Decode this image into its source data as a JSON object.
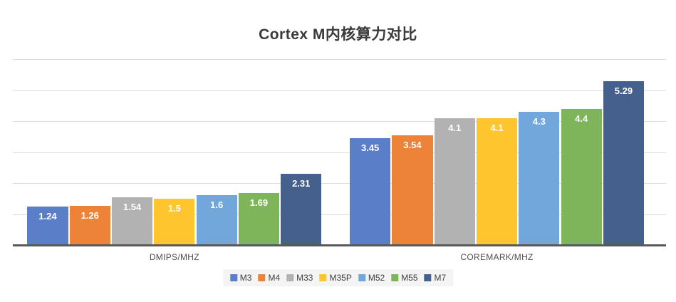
{
  "chart_data": {
    "type": "bar",
    "title": "Cortex M内核算力对比",
    "categories": [
      "DMIPS/MHZ",
      "COREMARK/MHZ"
    ],
    "series": [
      {
        "name": "M3",
        "color": "#5b7ec8",
        "values": [
          1.24,
          3.45
        ]
      },
      {
        "name": "M4",
        "color": "#ed8239",
        "values": [
          1.26,
          3.54
        ]
      },
      {
        "name": "M33",
        "color": "#b2b2b2",
        "values": [
          1.54,
          4.1
        ]
      },
      {
        "name": "M35P",
        "color": "#ffc52f",
        "values": [
          1.5,
          4.1
        ]
      },
      {
        "name": "M52",
        "color": "#71a7da",
        "values": [
          1.6,
          4.3
        ]
      },
      {
        "name": "M55",
        "color": "#7eb55b",
        "values": [
          1.69,
          4.4
        ]
      },
      {
        "name": "M7",
        "color": "#45608d",
        "values": [
          2.31,
          5.29
        ]
      }
    ],
    "ylim": [
      0,
      6
    ],
    "grid_step": 1,
    "grid": true,
    "y_tick_labels_visible": false,
    "value_labels_position": "inside-end",
    "value_label_color": "#ffffff",
    "legend_position": "bottom",
    "axis_line_color": "#595959",
    "gridline_color": "#dcdcdc",
    "legend_background": "#f4f4f4"
  }
}
